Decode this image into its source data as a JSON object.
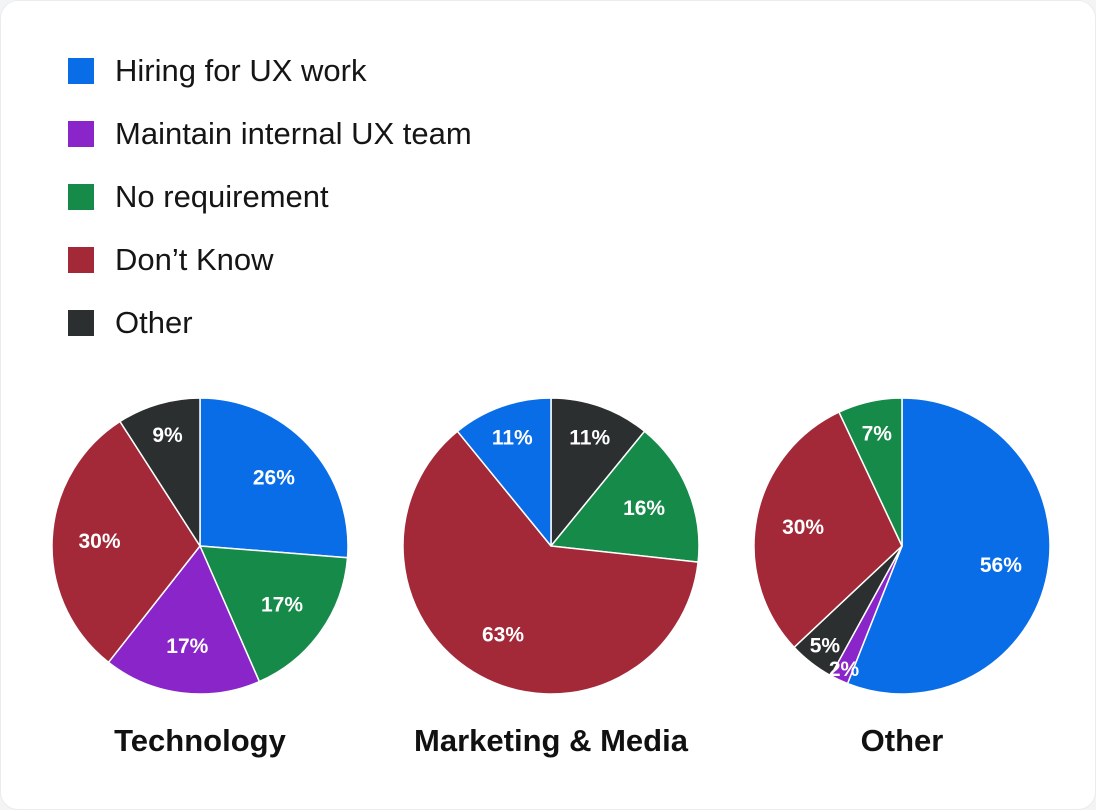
{
  "colors": {
    "hiring": "#0a6de8",
    "internal": "#8a25c9",
    "no_requirement": "#168a49",
    "dont_know": "#a32838",
    "other": "#2b2f30"
  },
  "legend": [
    {
      "key": "hiring",
      "label": "Hiring for UX work"
    },
    {
      "key": "internal",
      "label": "Maintain internal UX team"
    },
    {
      "key": "no_requirement",
      "label": "No requirement"
    },
    {
      "key": "dont_know",
      "label": "Don’t Know"
    },
    {
      "key": "other",
      "label": "Other"
    }
  ],
  "chart_data": [
    {
      "type": "pie",
      "title": "Technology",
      "slices": [
        {
          "key": "hiring",
          "value": 26,
          "label": "26%"
        },
        {
          "key": "no_requirement",
          "value": 17,
          "label": "17%"
        },
        {
          "key": "internal",
          "value": 17,
          "label": "17%"
        },
        {
          "key": "dont_know",
          "value": 30,
          "label": "30%"
        },
        {
          "key": "other",
          "value": 9,
          "label": "9%"
        }
      ]
    },
    {
      "type": "pie",
      "title": "Marketing & Media",
      "slices": [
        {
          "key": "other",
          "value": 11,
          "label": "11%"
        },
        {
          "key": "no_requirement",
          "value": 16,
          "label": "16%"
        },
        {
          "key": "dont_know",
          "value": 63,
          "label": "63%"
        },
        {
          "key": "hiring",
          "value": 11,
          "label": "11%"
        }
      ]
    },
    {
      "type": "pie",
      "title": "Other",
      "slices": [
        {
          "key": "hiring",
          "value": 56,
          "label": "56%"
        },
        {
          "key": "internal",
          "value": 2,
          "label": "2%"
        },
        {
          "key": "other",
          "value": 5,
          "label": "5%"
        },
        {
          "key": "dont_know",
          "value": 30,
          "label": "30%"
        },
        {
          "key": "no_requirement",
          "value": 7,
          "label": "7%"
        }
      ]
    }
  ]
}
